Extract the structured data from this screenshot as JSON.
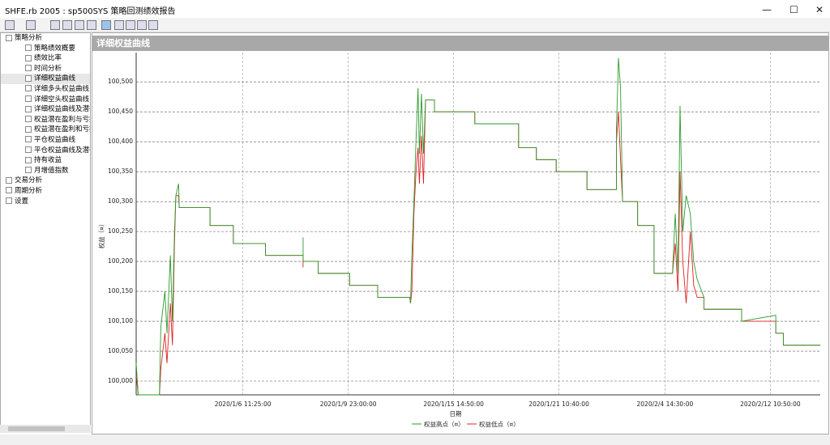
{
  "window_title": "SHFE.rb 2005 : sp500SYS 策略回测绩效报告",
  "tree": [
    {
      "label": "策略分析",
      "children": [
        "策略绩效概要",
        "绩效比率",
        "时间分析",
        "详细权益曲线",
        "详细多头权益曲线",
        "详细空头权益曲线",
        "详细权益曲线及潜在",
        "权益潜在盈利与亏损",
        "权益潜在盈利和亏损",
        "平仓权益曲线",
        "平仓权益曲线及潜在",
        "持有收益",
        "月增值指数"
      ]
    },
    {
      "label": "交易分析",
      "children": []
    },
    {
      "label": "周期分析",
      "children": []
    },
    {
      "label": "设置",
      "children": []
    }
  ],
  "panel_title": "详细权益曲线",
  "chart_data": {
    "type": "line",
    "y_label": "权益（¤）",
    "x_label": "日期",
    "grid": true,
    "xlim": [
      0,
      100
    ],
    "xticks": [
      {
        "value": 15.6,
        "label": "2020/1/6 11:25:00"
      },
      {
        "value": 31,
        "label": "2020/1/9 23:00:00"
      },
      {
        "value": 46.4,
        "label": "2020/1/15 14:50:00"
      },
      {
        "value": 61.8,
        "label": "2020/1/21 10:40:00"
      },
      {
        "value": 77.3,
        "label": "2020/2/4 14:30:00"
      },
      {
        "value": 92.7,
        "label": "2020/2/12 10:50:00"
      }
    ],
    "ylim": [
      99977,
      100549
    ],
    "yticks": [
      {
        "value": 100000,
        "label": "100,000"
      },
      {
        "value": 100050,
        "label": "100,050"
      },
      {
        "value": 100100,
        "label": "100,100"
      },
      {
        "value": 100150,
        "label": "100,150"
      },
      {
        "value": 100200,
        "label": "100,200"
      },
      {
        "value": 100250,
        "label": "100,250"
      },
      {
        "value": 100300,
        "label": "100,300"
      },
      {
        "value": 100350,
        "label": "100,350"
      },
      {
        "value": 100400,
        "label": "100,400"
      },
      {
        "value": 100450,
        "label": "100,450"
      },
      {
        "value": 100500,
        "label": "100,500"
      }
    ],
    "x": [
      0,
      0.3,
      3.4,
      3.6,
      4.2,
      4.5,
      5.0,
      5.3,
      5.6,
      5.8,
      6.2,
      6.3,
      10.8,
      10.8,
      14.2,
      14.2,
      18.9,
      18.9,
      24.4,
      24.4,
      24.4,
      26.6,
      26.6,
      31.2,
      31.2,
      35.3,
      35.3,
      40.0,
      40.1,
      40.3,
      40.6,
      40.9,
      41.2,
      41.4,
      41.7,
      42.0,
      42.3,
      43.6,
      43.6,
      49.5,
      49.5,
      55.9,
      55.9,
      58.5,
      58.5,
      61.4,
      61.4,
      65.9,
      65.9,
      70.2,
      70.2,
      70.5,
      70.8,
      71.1,
      73.3,
      73.3,
      75.7,
      75.7,
      78.4,
      78.8,
      79.2,
      79.5,
      79.9,
      80.4,
      81.0,
      81.5,
      82.0,
      83.0,
      83.0,
      88.5,
      88.5,
      93.5,
      93.5,
      94.6,
      94.6,
      100
    ],
    "series": [
      {
        "name": "权益高点（¤）",
        "color": "#2e9a2e",
        "values": [
          100030,
          99977,
          99977,
          100090,
          100150,
          100080,
          100210,
          100100,
          100250,
          100310,
          100330,
          100290,
          100290,
          100260,
          100260,
          100230,
          100230,
          100210,
          100210,
          100240,
          100200,
          100200,
          100180,
          100180,
          100160,
          100160,
          100140,
          100140,
          100130,
          100210,
          100300,
          100400,
          100490,
          100380,
          100480,
          100380,
          100470,
          100470,
          100450,
          100450,
          100430,
          100430,
          100390,
          100390,
          100370,
          100370,
          100350,
          100350,
          100320,
          100320,
          100420,
          100540,
          100490,
          100300,
          100300,
          100260,
          100260,
          100180,
          100180,
          100280,
          100180,
          100460,
          100250,
          100310,
          100280,
          100200,
          100170,
          100140,
          100120,
          100120,
          100100,
          100110,
          100080,
          100080,
          100060,
          100060
        ]
      },
      {
        "name": "权益低点（¤）",
        "color": "#e02020",
        "values": [
          100010,
          99977,
          99977,
          100020,
          100080,
          100030,
          100130,
          100060,
          100230,
          100310,
          100310,
          100290,
          100290,
          100260,
          100260,
          100230,
          100230,
          100210,
          100210,
          100190,
          100200,
          100200,
          100180,
          100180,
          100160,
          100160,
          100140,
          100140,
          100130,
          100150,
          100280,
          100350,
          100390,
          100330,
          100410,
          100330,
          100470,
          100470,
          100450,
          100450,
          100430,
          100430,
          100390,
          100390,
          100370,
          100370,
          100350,
          100350,
          100320,
          100320,
          100400,
          100450,
          100370,
          100300,
          100300,
          100260,
          100260,
          100180,
          100180,
          100230,
          100150,
          100350,
          100200,
          100130,
          100250,
          100160,
          100140,
          100140,
          100120,
          100120,
          100100,
          100100,
          100080,
          100080,
          100060,
          100060
        ]
      }
    ]
  }
}
